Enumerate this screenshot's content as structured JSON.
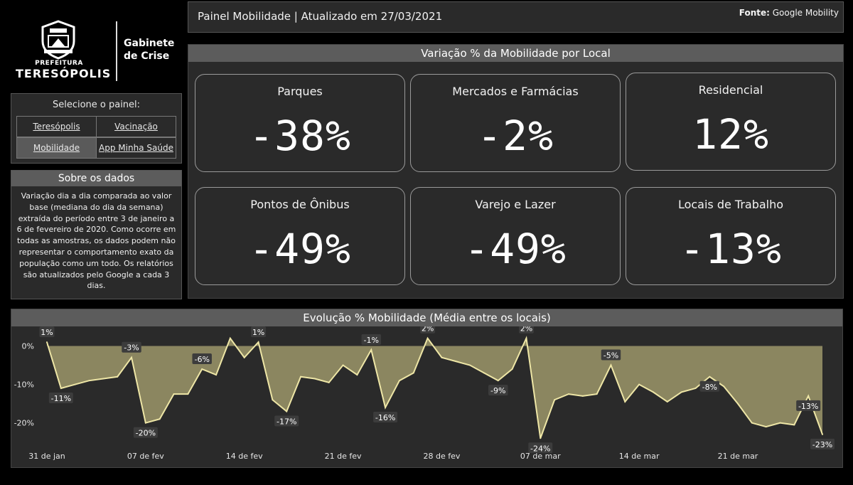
{
  "brand": {
    "prefeitura": "PREFEITURA",
    "city": "TERESÓPOLIS",
    "gabinete_line1": "Gabinete",
    "gabinete_line2": "de Crise"
  },
  "selector": {
    "title": "Selecione o painel:",
    "buttons": [
      "Teresópolis",
      "Vacinação",
      "Mobilidade",
      "App Minha Saúde"
    ],
    "active": "Mobilidade"
  },
  "about": {
    "title": "Sobre os dados",
    "text": "Variação dia a dia comparada ao valor base (mediana do dia da semana) extraída do período entre 3 de janeiro a 6 de fevereiro de 2020. Como ocorre em todas as amostras, os dados podem não representar o comportamento exato da população como um todo. Os relatórios são atualizados pelo Google a cada 3 dias."
  },
  "header": {
    "title": "Painel Mobilidade | Atualizado em 27/03/2021",
    "fonte_label": "Fonte:",
    "fonte_value": "Google Mobility"
  },
  "kpi": {
    "title": "Variação % da Mobilidade por Local",
    "cards": [
      {
        "label": "Parques",
        "value": "-38%"
      },
      {
        "label": "Mercados e Farmácias",
        "value": "-2%"
      },
      {
        "label": "Residencial",
        "value": "12%"
      },
      {
        "label": "Pontos de Ônibus",
        "value": "-49%"
      },
      {
        "label": "Varejo e Lazer",
        "value": "-49%"
      },
      {
        "label": "Locais de Trabalho",
        "value": "-13%"
      }
    ]
  },
  "colors": {
    "fill": "#8b8660",
    "line": "#eee6a6",
    "label_bg": "#3c3c3c"
  },
  "chart_data": {
    "type": "area",
    "title": "Evolução % Mobilidade (Média entre os locais)",
    "ylim": [
      -24.5,
      2.5
    ],
    "yticks": [
      0,
      -10,
      -20
    ],
    "ytick_labels": [
      "0%",
      "-10%",
      "-20%"
    ],
    "x_ticks": [
      {
        "day": 0,
        "label": "31 de jan"
      },
      {
        "day": 7,
        "label": "07 de fev"
      },
      {
        "day": 14,
        "label": "14 de fev"
      },
      {
        "day": 21,
        "label": "21 de fev"
      },
      {
        "day": 28,
        "label": "28 de fev"
      },
      {
        "day": 35,
        "label": "07 de mar"
      },
      {
        "day": 42,
        "label": "14 de mar"
      },
      {
        "day": 49,
        "label": "21 de mar"
      }
    ],
    "x_max": 55,
    "values": [
      1,
      -11,
      -10,
      -9,
      -8.5,
      -8,
      -3,
      -20,
      -19,
      -12.5,
      -12.5,
      -6,
      -7.5,
      2,
      -3,
      1,
      -14,
      -17,
      -8,
      -8.5,
      -9.5,
      -5,
      -7.5,
      -1,
      -16,
      -9,
      -7,
      2,
      -3,
      -4,
      -5,
      -7,
      -9,
      -6,
      2,
      -24,
      -14,
      -12.5,
      -13,
      -12.5,
      -5,
      -14.5,
      -10,
      -12,
      -14.5,
      -12,
      -11,
      -8,
      -10.5,
      -15,
      -20,
      -21,
      -20,
      -20.5,
      -13,
      -23
    ],
    "annotations": [
      {
        "day": 0,
        "label": "1%"
      },
      {
        "day": 1,
        "label": "-11%"
      },
      {
        "day": 6,
        "label": "-3%"
      },
      {
        "day": 7,
        "label": "-20%"
      },
      {
        "day": 11,
        "label": "-6%"
      },
      {
        "day": 15,
        "label": "1%"
      },
      {
        "day": 17,
        "label": "-17%"
      },
      {
        "day": 23,
        "label": "-1%"
      },
      {
        "day": 24,
        "label": "-16%"
      },
      {
        "day": 27,
        "label": "2%"
      },
      {
        "day": 32,
        "label": "-9%"
      },
      {
        "day": 34,
        "label": "2%"
      },
      {
        "day": 35,
        "label": "-24%"
      },
      {
        "day": 40,
        "label": "-5%"
      },
      {
        "day": 47,
        "label": "-8%"
      },
      {
        "day": 54,
        "label": "-13%"
      },
      {
        "day": 55,
        "label": "-23%"
      }
    ]
  }
}
